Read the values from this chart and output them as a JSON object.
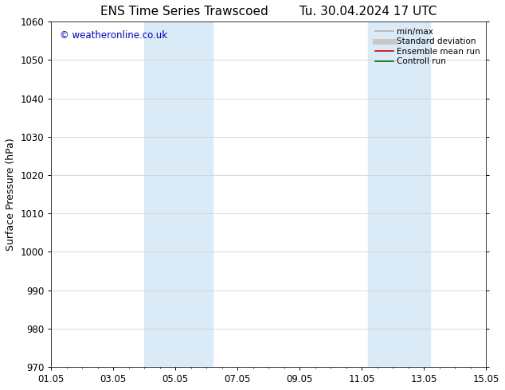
{
  "title": "ENS Time Series Trawscoed",
  "title_right": "Tu. 30.04.2024 17 UTC",
  "ylabel": "Surface Pressure (hPa)",
  "ylim": [
    970,
    1060
  ],
  "yticks": [
    970,
    980,
    990,
    1000,
    1010,
    1020,
    1030,
    1040,
    1050,
    1060
  ],
  "xtick_labels": [
    "01.05",
    "03.05",
    "05.05",
    "07.05",
    "09.05",
    "11.05",
    "13.05",
    "15.05"
  ],
  "xtick_positions": [
    0,
    2,
    4,
    6,
    8,
    10,
    12,
    14
  ],
  "xlim": [
    0,
    14
  ],
  "watermark": "© weatheronline.co.uk",
  "shaded_bands": [
    {
      "x_start": 3.0,
      "x_end": 5.2
    },
    {
      "x_start": 10.2,
      "x_end": 12.2
    }
  ],
  "legend_items": [
    {
      "label": "min/max",
      "color": "#b0b0b0",
      "lw": 1.2,
      "style": "solid"
    },
    {
      "label": "Standard deviation",
      "color": "#c8c8c8",
      "lw": 5,
      "style": "solid"
    },
    {
      "label": "Ensemble mean run",
      "color": "#cc0000",
      "lw": 1.2,
      "style": "solid"
    },
    {
      "label": "Controll run",
      "color": "#006600",
      "lw": 1.2,
      "style": "solid"
    }
  ],
  "background_color": "#ffffff",
  "plot_bg_color": "#ffffff",
  "shade_color": "#daeaf7",
  "grid_color": "#cccccc",
  "title_fontsize": 11,
  "ylabel_fontsize": 9,
  "tick_fontsize": 8.5,
  "legend_fontsize": 7.5,
  "watermark_color": "#0000bb",
  "watermark_fontsize": 8.5
}
